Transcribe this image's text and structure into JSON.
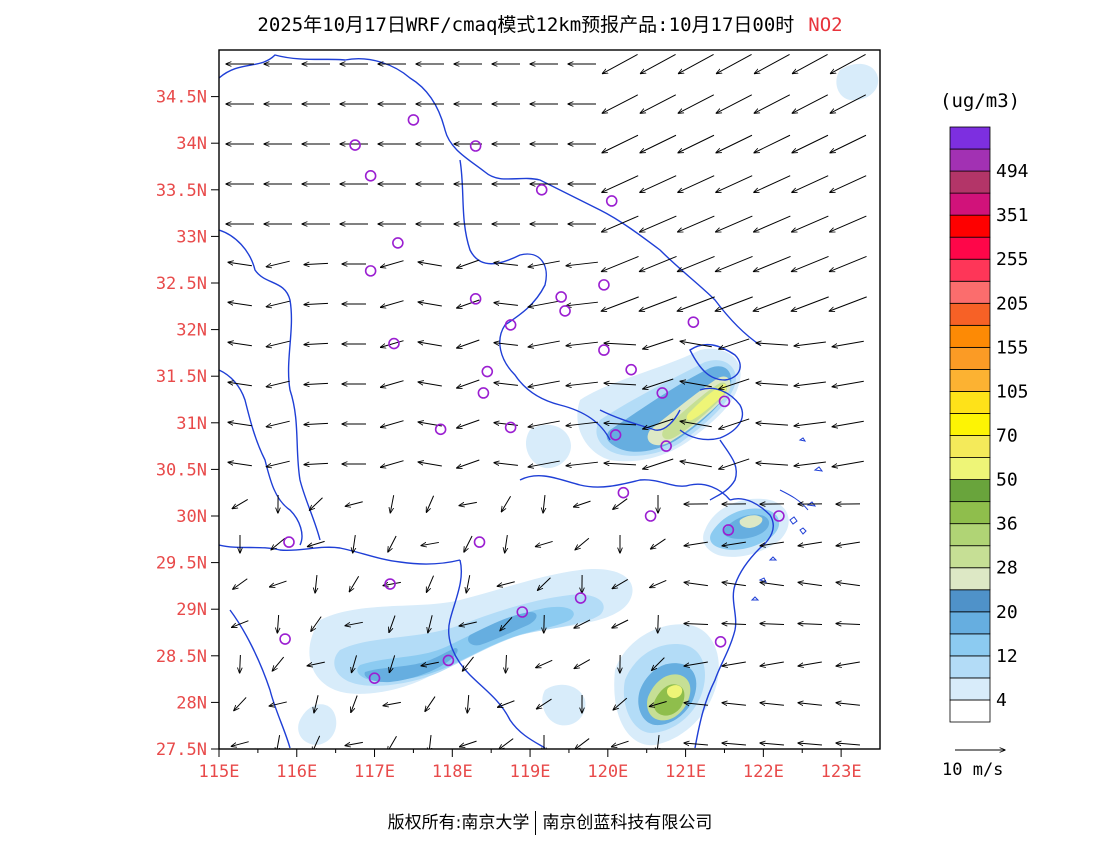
{
  "title": {
    "main": "2025年10月17日WRF/cmaq模式12km预报产品:10月17日00时",
    "pollutant": "NO2"
  },
  "map": {
    "lon_range": [
      115,
      123.5
    ],
    "lat_range": [
      27.5,
      35
    ],
    "x_ticks": [
      "115E",
      "116E",
      "117E",
      "118E",
      "119E",
      "120E",
      "121E",
      "122E",
      "123E"
    ],
    "y_ticks": [
      "27.5N",
      "28N",
      "28.5N",
      "29N",
      "29.5N",
      "30N",
      "30.5N",
      "31N",
      "31.5N",
      "32N",
      "32.5N",
      "33N",
      "33.5N",
      "34N",
      "34.5N"
    ],
    "label_color": "#e84a4a",
    "boundary_color": "#1f3fd6",
    "station_color": "#9b1fd1",
    "stations": [
      [
        117.5,
        34.25
      ],
      [
        116.75,
        33.98
      ],
      [
        118.3,
        33.97
      ],
      [
        116.95,
        33.65
      ],
      [
        119.15,
        33.5
      ],
      [
        120.05,
        33.38
      ],
      [
        117.3,
        32.93
      ],
      [
        116.95,
        32.63
      ],
      [
        119.95,
        32.48
      ],
      [
        119.4,
        32.35
      ],
      [
        118.3,
        32.33
      ],
      [
        119.45,
        32.2
      ],
      [
        118.75,
        32.05
      ],
      [
        121.1,
        32.08
      ],
      [
        117.25,
        31.85
      ],
      [
        119.95,
        31.78
      ],
      [
        120.3,
        31.57
      ],
      [
        118.45,
        31.55
      ],
      [
        118.4,
        31.32
      ],
      [
        120.7,
        31.32
      ],
      [
        121.5,
        31.23
      ],
      [
        118.75,
        30.95
      ],
      [
        117.85,
        30.93
      ],
      [
        120.1,
        30.87
      ],
      [
        120.75,
        30.75
      ],
      [
        120.2,
        30.25
      ],
      [
        120.55,
        30.0
      ],
      [
        121.55,
        29.85
      ],
      [
        122.2,
        30.0
      ],
      [
        115.9,
        29.72
      ],
      [
        118.35,
        29.72
      ],
      [
        117.2,
        29.27
      ],
      [
        119.65,
        29.12
      ],
      [
        118.9,
        28.97
      ],
      [
        115.85,
        28.68
      ],
      [
        121.45,
        28.65
      ],
      [
        117.95,
        28.45
      ],
      [
        117.0,
        28.26
      ]
    ],
    "wind_arrows_note": ""
  },
  "colorbar": {
    "unit": "(ug/m3)",
    "colors": [
      "#ffffff",
      "#d8ecfa",
      "#b3dcf7",
      "#8ccbf1",
      "#66aee0",
      "#4f92c9",
      "#dde8c5",
      "#c6df95",
      "#b0d475",
      "#8fbe4c",
      "#69a43c",
      "#eef577",
      "#f4ea5a",
      "#fdf404",
      "#fee219",
      "#fcb232",
      "#fb9b25",
      "#fd8a05",
      "#f76126",
      "#fb6d6d",
      "#fe3658",
      "#fe0649",
      "#fe0000",
      "#d1127a",
      "#b33568",
      "#a231b3",
      "#7d2fe0"
    ],
    "labels": [
      "4",
      "12",
      "20",
      "28",
      "36",
      "50",
      "70",
      "105",
      "155",
      "205",
      "255",
      "351",
      "494"
    ]
  },
  "scale_arrow": {
    "label": "10 m/s"
  },
  "footer": {
    "left": "版权所有:南京大学",
    "right": "南京创蓝科技有限公司"
  }
}
